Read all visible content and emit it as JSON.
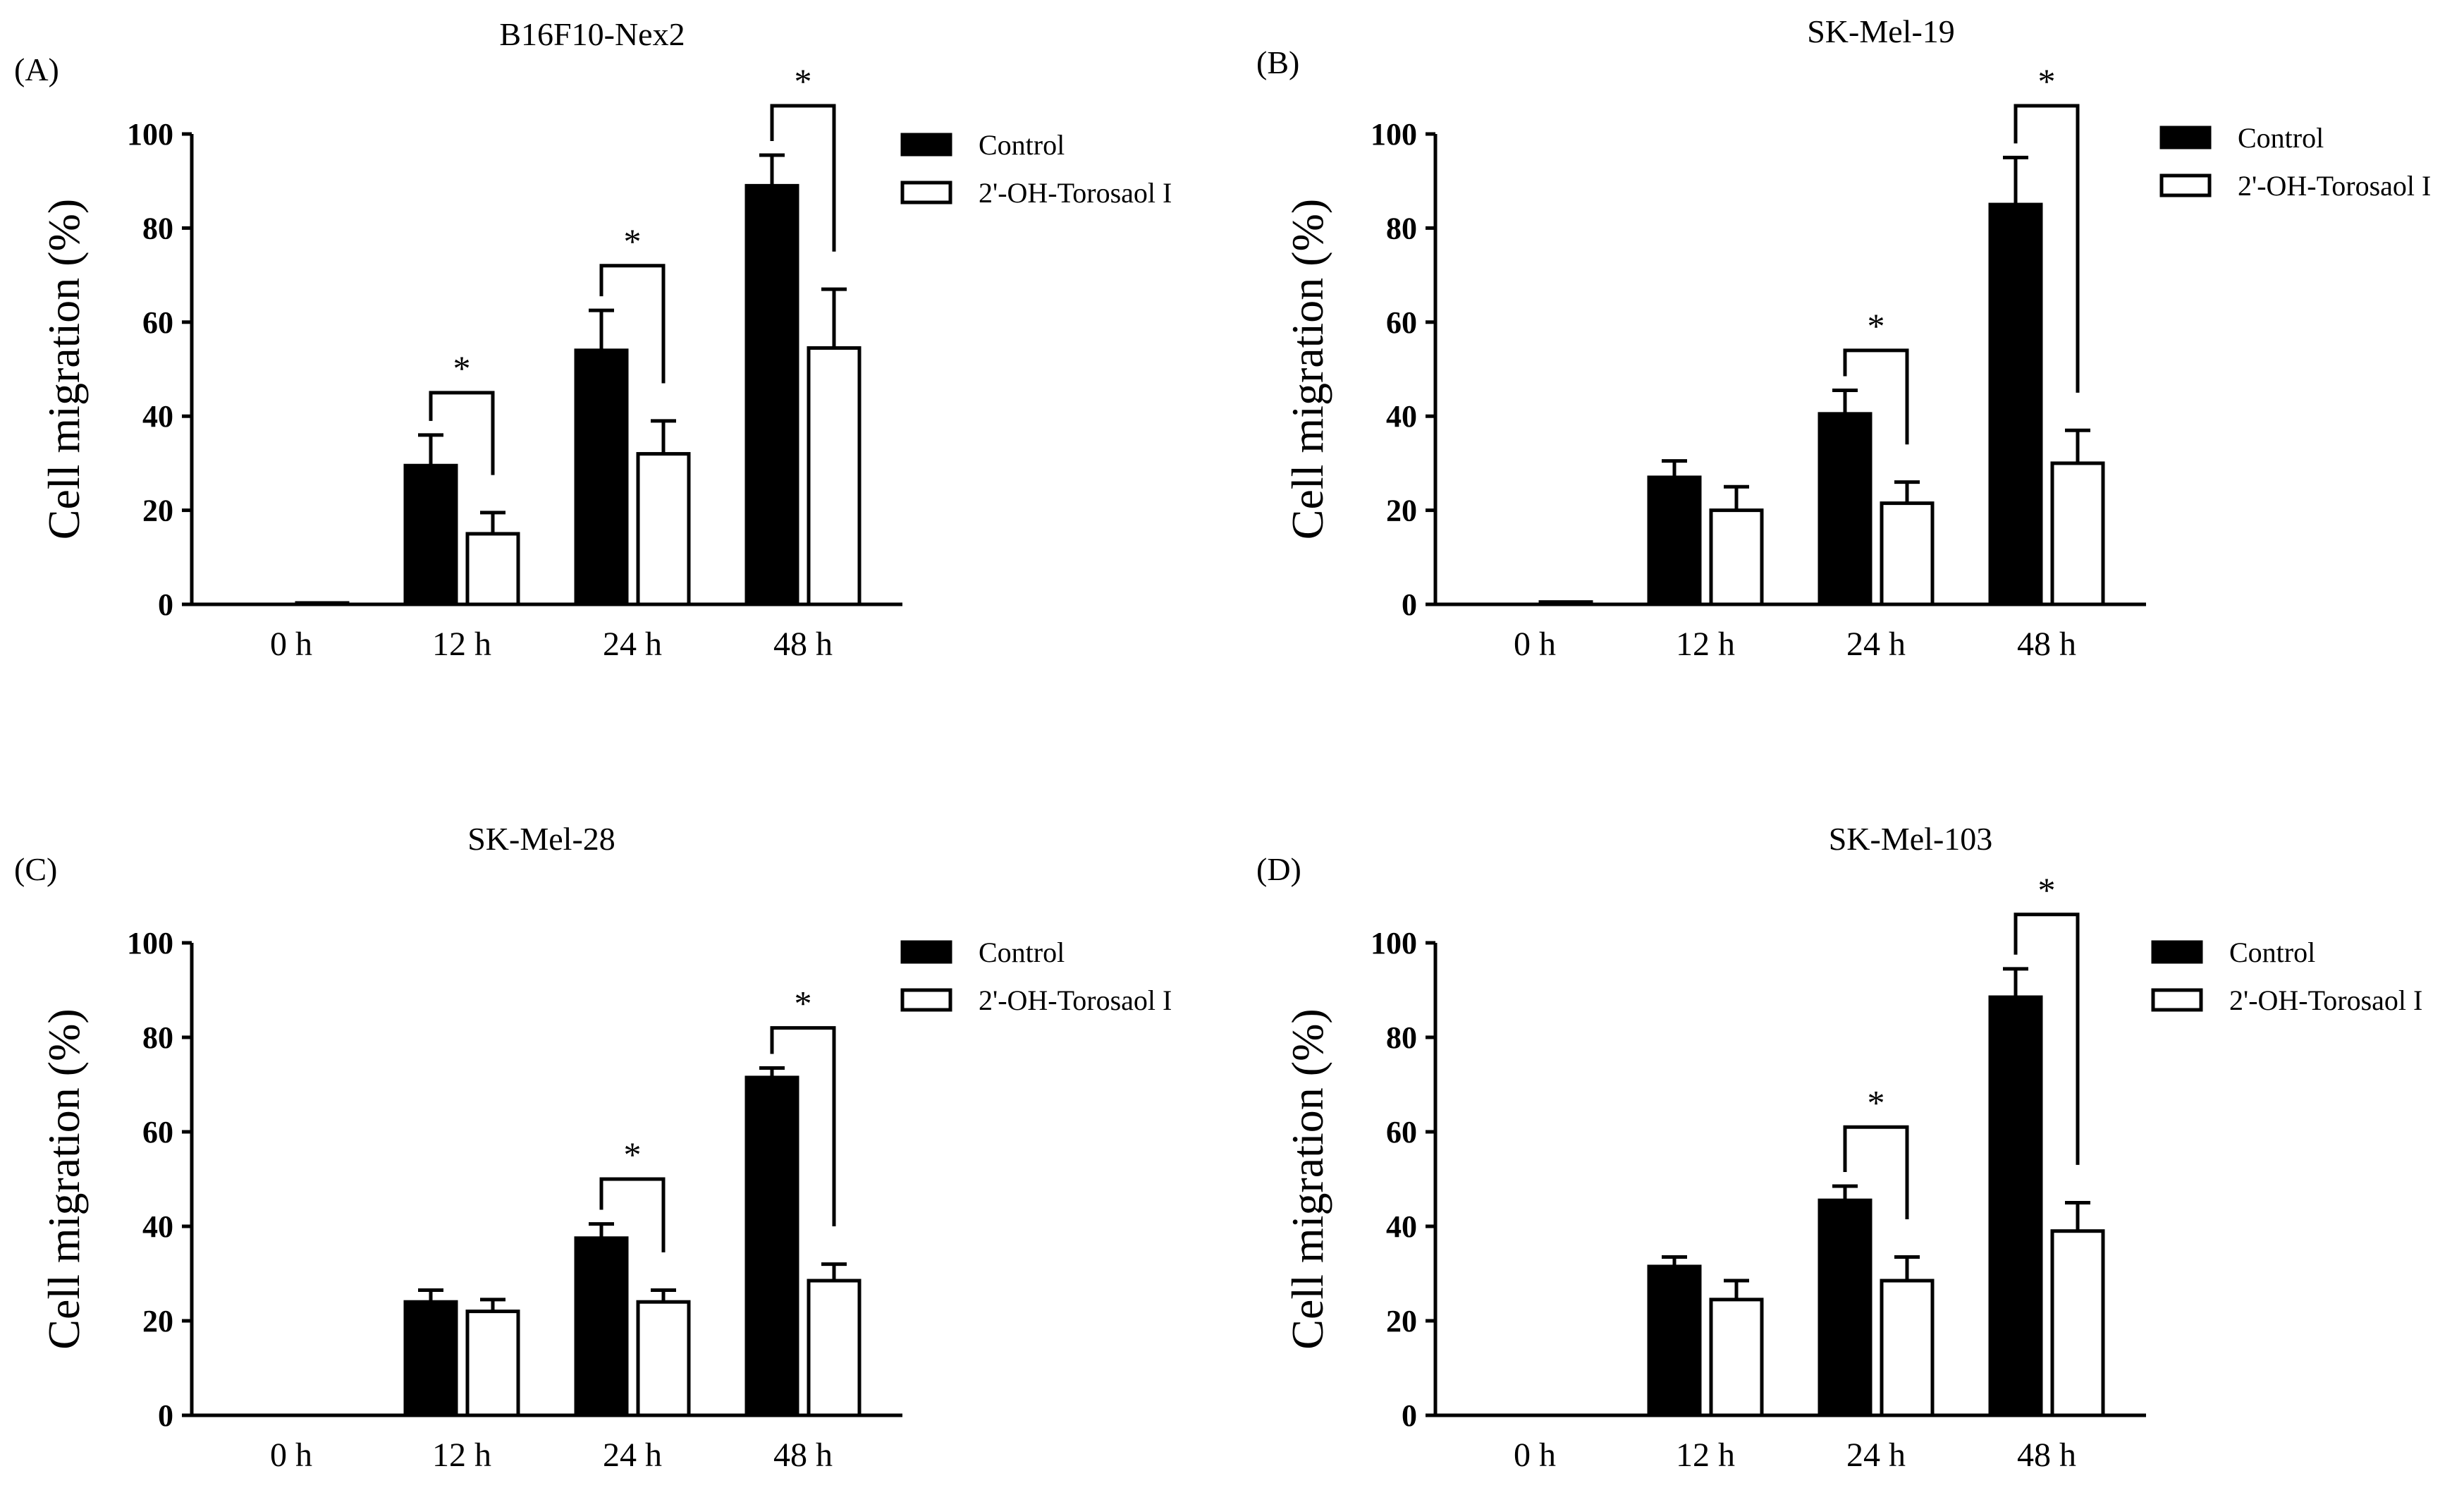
{
  "colors": {
    "control": "#000000",
    "treatment": "#ffffff",
    "stroke": "#000000"
  },
  "chart_data": [
    {
      "id": "A",
      "letter": "(A)",
      "type": "bar",
      "title": "B16F10-Nex2",
      "xlabel": "",
      "ylabel": "Cell migration (%)",
      "ylim": [
        0,
        100
      ],
      "yticks": [
        "0",
        "20",
        "40",
        "60",
        "80",
        "100"
      ],
      "categories": [
        "0 h",
        "12 h",
        "24 h",
        "48 h"
      ],
      "legend_position": "top-right",
      "series": [
        {
          "name": "Control",
          "values": [
            0,
            29.5,
            54,
            89
          ],
          "errors": [
            0,
            6.5,
            8.5,
            6.5
          ]
        },
        {
          "name": "2'-OH-Torosaol I",
          "values": [
            0.3,
            15,
            32,
            54.5
          ],
          "errors": [
            0,
            4.5,
            7,
            12.5
          ]
        }
      ],
      "significance": [
        {
          "category_index": 1,
          "label": "*",
          "bracket_top": 45
        },
        {
          "category_index": 2,
          "label": "*",
          "bracket_top": 72
        },
        {
          "category_index": 3,
          "label": "*",
          "bracket_top": 106
        }
      ]
    },
    {
      "id": "B",
      "letter": "(B)",
      "type": "bar",
      "title": "SK-Mel-19",
      "xlabel": "",
      "ylabel": "Cell migration (%)",
      "ylim": [
        0,
        100
      ],
      "yticks": [
        "0",
        "20",
        "40",
        "60",
        "80",
        "100"
      ],
      "categories": [
        "0 h",
        "12 h",
        "24 h",
        "48 h"
      ],
      "legend_position": "top-right",
      "series": [
        {
          "name": "Control",
          "values": [
            0,
            27,
            40.5,
            85
          ],
          "errors": [
            0,
            3.5,
            5,
            10
          ]
        },
        {
          "name": "2'-OH-Torosaol I",
          "values": [
            0.5,
            20,
            21.5,
            30
          ],
          "errors": [
            0,
            5,
            4.5,
            7
          ]
        }
      ],
      "significance": [
        {
          "category_index": 2,
          "label": "*",
          "bracket_top": 54
        },
        {
          "category_index": 3,
          "label": "*",
          "bracket_top": 106
        }
      ]
    },
    {
      "id": "C",
      "letter": "(C)",
      "type": "bar",
      "title": "SK-Mel-28",
      "xlabel": "",
      "ylabel": "Cell migration (%)",
      "ylim": [
        0,
        100
      ],
      "yticks": [
        "0",
        "20",
        "40",
        "60",
        "80",
        "100"
      ],
      "categories": [
        "0 h",
        "12 h",
        "24 h",
        "48 h"
      ],
      "legend_position": "top-right",
      "series": [
        {
          "name": "Control",
          "values": [
            0,
            24,
            37.5,
            71.5
          ],
          "errors": [
            0,
            2.5,
            3,
            2
          ]
        },
        {
          "name": "2'-OH-Torosaol I",
          "values": [
            0,
            22,
            24,
            28.5
          ],
          "errors": [
            0,
            2.5,
            2.5,
            3.5
          ]
        }
      ],
      "significance": [
        {
          "category_index": 2,
          "label": "*",
          "bracket_top": 50
        },
        {
          "category_index": 3,
          "label": "*",
          "bracket_top": 82
        }
      ]
    },
    {
      "id": "D",
      "letter": "(D)",
      "type": "bar",
      "title": "SK-Mel-103",
      "xlabel": "",
      "ylabel": "Cell migration (%)",
      "ylim": [
        0,
        100
      ],
      "yticks": [
        "0",
        "20",
        "40",
        "60",
        "80",
        "100"
      ],
      "categories": [
        "0 h",
        "12 h",
        "24 h",
        "48 h"
      ],
      "legend_position": "top-right",
      "series": [
        {
          "name": "Control",
          "values": [
            0,
            31.5,
            45.5,
            88.5
          ],
          "errors": [
            0,
            2,
            3,
            6
          ]
        },
        {
          "name": "2'-OH-Torosaol I",
          "values": [
            0,
            24.5,
            28.5,
            39
          ],
          "errors": [
            0,
            4,
            5,
            6
          ]
        }
      ],
      "significance": [
        {
          "category_index": 2,
          "label": "*",
          "bracket_top": 61
        },
        {
          "category_index": 3,
          "label": "*",
          "bracket_top": 106
        }
      ]
    }
  ]
}
